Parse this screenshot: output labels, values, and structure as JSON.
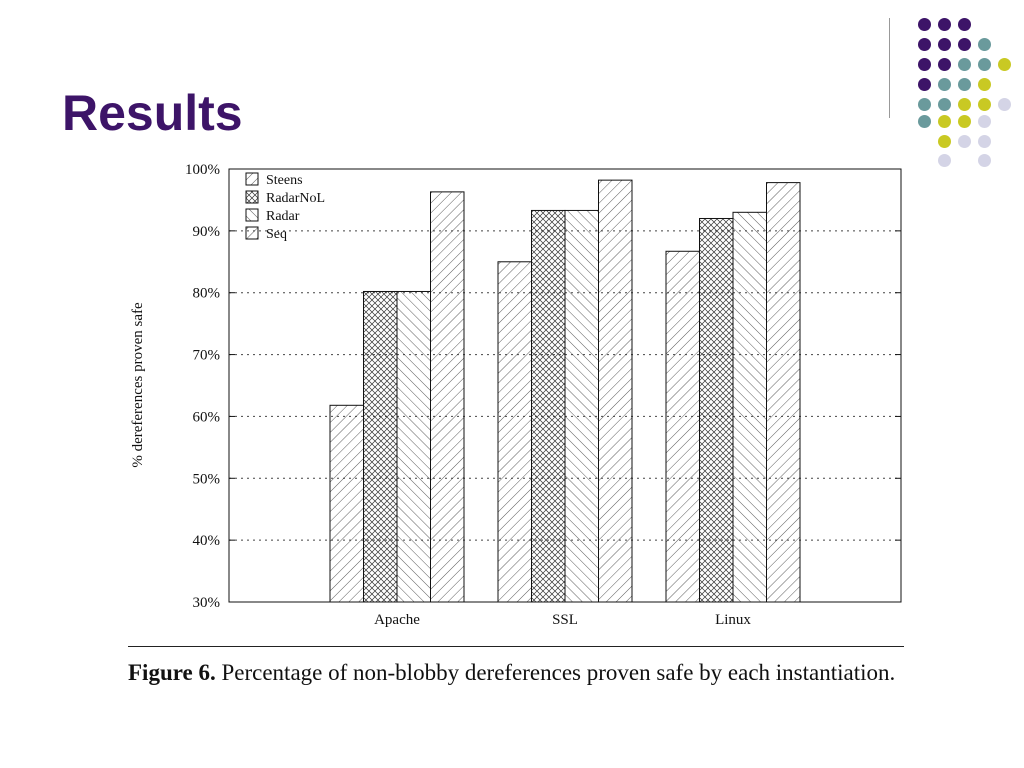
{
  "slide": {
    "title": "Results",
    "dot_colors": [
      "#3d1468",
      "#6a9a9c",
      "#c9c923",
      "#d4d4e6"
    ]
  },
  "caption": {
    "label": "Figure 6.",
    "text": "Percentage of non-blobby dereferences proven safe by each instantiation."
  },
  "chart_data": {
    "type": "bar",
    "title": "",
    "xlabel": "",
    "ylabel": "% dereferences proven safe",
    "categories": [
      "Apache",
      "SSL",
      "Linux"
    ],
    "series": [
      {
        "name": "Steens",
        "values": [
          61.8,
          85.0,
          86.7
        ],
        "pattern": "hatch-forward"
      },
      {
        "name": "RadarNoL",
        "values": [
          80.2,
          93.3,
          92.0
        ],
        "pattern": "crosshatch"
      },
      {
        "name": "Radar",
        "values": [
          80.2,
          93.3,
          93.0
        ],
        "pattern": "hatch-back"
      },
      {
        "name": "Seq",
        "values": [
          96.3,
          98.2,
          97.8
        ],
        "pattern": "hatch-forward"
      }
    ],
    "ylim": [
      30,
      100
    ],
    "yticks": [
      "30%",
      "40%",
      "50%",
      "60%",
      "70%",
      "80%",
      "90%",
      "100%"
    ],
    "grid": "dotted horizontal",
    "legend": "top-left"
  }
}
